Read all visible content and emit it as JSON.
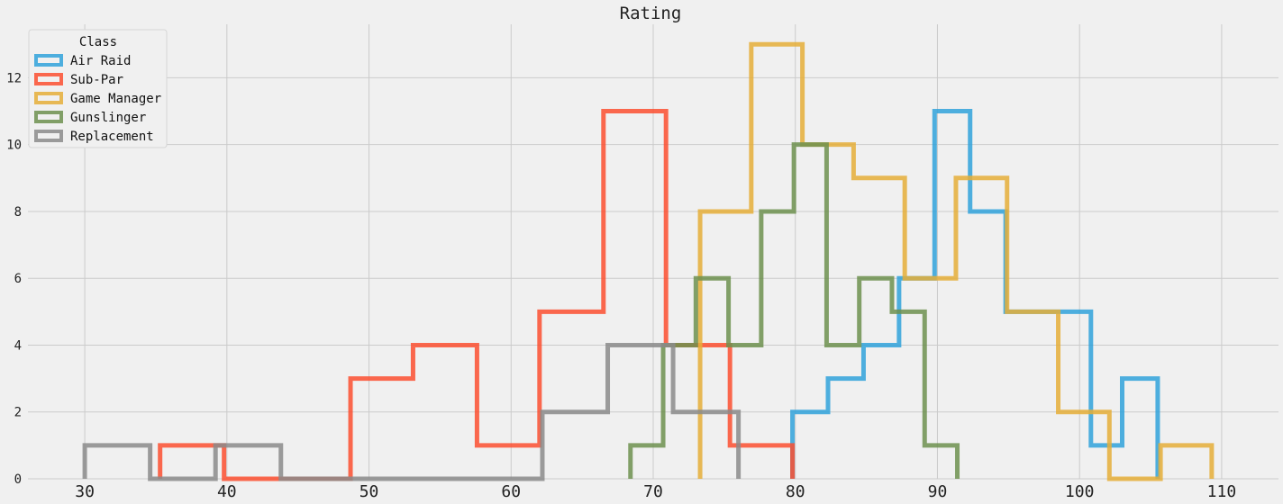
{
  "chart_data": {
    "type": "histogram",
    "title": "Rating",
    "xlim": [
      26,
      114
    ],
    "ylim": [
      0,
      13.6
    ],
    "xticks": [
      "30",
      "40",
      "50",
      "60",
      "70",
      "80",
      "90",
      "100",
      "110"
    ],
    "yticks": [
      "0",
      "2",
      "4",
      "6",
      "8",
      "10",
      "12"
    ],
    "grid": true,
    "legend": {
      "title": "Class",
      "placement": "top-left"
    },
    "series": [
      {
        "name": "Air Raid",
        "color": "#30a2da",
        "edges": [
          79.8,
          82.3,
          84.8,
          87.3,
          89.8,
          92.3,
          94.8,
          97.3,
          100.8,
          103.0,
          105.5
        ],
        "counts": [
          2,
          3,
          4,
          6,
          11,
          8,
          5,
          5,
          1,
          3
        ]
      },
      {
        "name": "Sub-Par",
        "color": "#fc4f30",
        "edges": [
          35.3,
          39.8,
          44.2,
          48.7,
          53.1,
          57.6,
          62.0,
          66.5,
          70.9,
          75.4,
          79.8
        ],
        "counts": [
          1,
          0,
          0,
          3,
          4,
          1,
          5,
          11,
          4,
          1
        ]
      },
      {
        "name": "Game Manager",
        "color": "#e5ae38",
        "edges": [
          73.3,
          76.9,
          80.5,
          84.1,
          87.7,
          91.3,
          94.9,
          98.5,
          102.1,
          105.7,
          109.3
        ],
        "counts": [
          8,
          13,
          10,
          9,
          6,
          9,
          5,
          2,
          0,
          1
        ]
      },
      {
        "name": "Gunslinger",
        "color": "#6d904f",
        "edges": [
          68.4,
          70.7,
          73.0,
          75.3,
          77.6,
          79.9,
          82.2,
          84.5,
          86.8,
          89.1,
          91.4
        ],
        "counts": [
          1,
          4,
          6,
          4,
          8,
          10,
          4,
          6,
          5,
          1
        ]
      },
      {
        "name": "Replacement",
        "color": "#8b8b8b",
        "edges": [
          30.0,
          34.6,
          39.2,
          43.8,
          48.4,
          53.0,
          57.6,
          62.2,
          66.8,
          71.4,
          76.0
        ],
        "counts": [
          1,
          0,
          1,
          0,
          0,
          0,
          0,
          2,
          4,
          2
        ]
      }
    ]
  }
}
